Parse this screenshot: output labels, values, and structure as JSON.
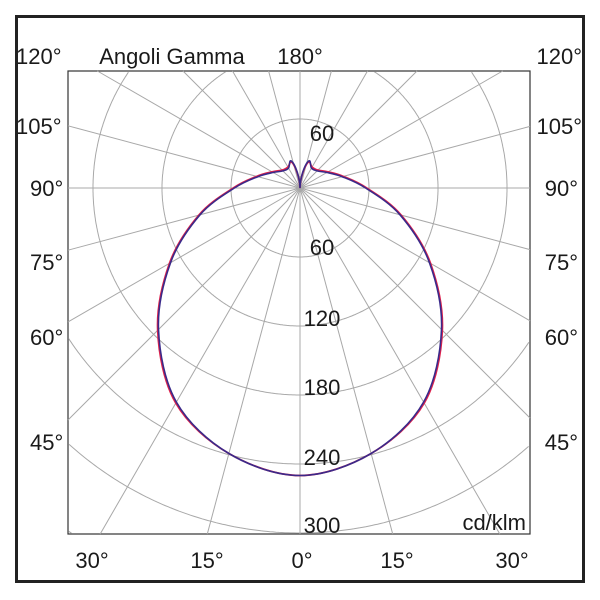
{
  "chart_data": {
    "type": "polar",
    "title": "Angoli Gamma",
    "unit_label": "cd/klm",
    "top_label": "180°",
    "left_angle_labels": [
      "120°",
      "105°",
      "90°",
      "75°",
      "60°",
      "45°"
    ],
    "right_angle_labels": [
      "120°",
      "105°",
      "90°",
      "75°",
      "60°",
      "45°"
    ],
    "bottom_angle_labels": [
      "30°",
      "15°",
      "0°",
      "15°",
      "30°"
    ],
    "radial_tick_labels": [
      "60",
      "60",
      "120",
      "180",
      "240",
      "300"
    ],
    "radial_step": 60,
    "radial_max": 360,
    "angular_step_deg": 15,
    "grid": true,
    "gamma_deg": [
      0,
      15,
      30,
      45,
      60,
      75,
      90,
      105,
      120,
      135,
      150,
      160,
      165,
      170,
      175,
      180
    ],
    "series": [
      {
        "color": "#e0204a",
        "values": [
          250,
          239,
          216,
          175,
          131,
          91,
          58,
          39,
          28,
          22,
          21,
          24,
          21,
          13,
          6,
          0
        ]
      },
      {
        "color": "#3a2a8a",
        "values": [
          250,
          239,
          215,
          174,
          130,
          90,
          57,
          38,
          27,
          21,
          20,
          25,
          22,
          14,
          6,
          0
        ]
      }
    ]
  }
}
